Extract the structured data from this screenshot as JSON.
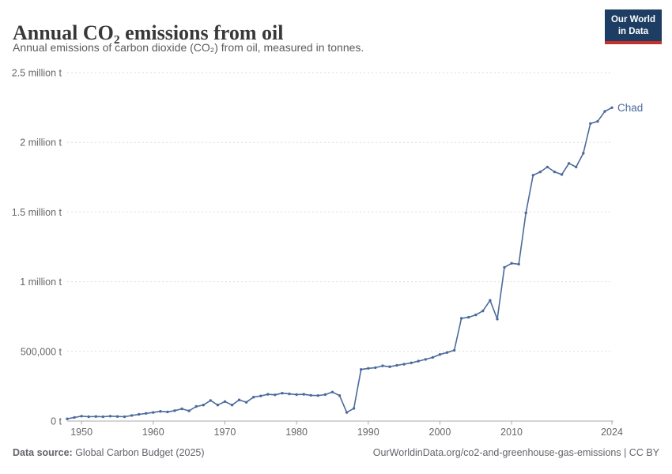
{
  "header": {
    "title": "Annual CO₂ emissions from oil",
    "subtitle": "Annual emissions of carbon dioxide (CO₂) from oil, measured in tonnes."
  },
  "logo": {
    "line1": "Our World",
    "line2": "in Data",
    "background_color": "#1D3D63",
    "accent_color": "#C5302B"
  },
  "footer": {
    "source_label": "Data source:",
    "source_value": " Global Carbon Budget (2025)",
    "link": "OurWorldinData.org/co2-and-greenhouse-gas-emissions | CC BY"
  },
  "chart_data": {
    "type": "line",
    "title": "Annual CO₂ emissions from oil",
    "ylabel": "",
    "xlabel": "",
    "grid": "dashed-horizontal",
    "legend_position": "end-of-line",
    "xlim": [
      1948,
      2024
    ],
    "ylim": [
      0,
      2500000
    ],
    "x": [
      1948,
      1949,
      1950,
      1951,
      1952,
      1953,
      1954,
      1955,
      1956,
      1957,
      1958,
      1959,
      1960,
      1961,
      1962,
      1963,
      1964,
      1965,
      1966,
      1967,
      1968,
      1969,
      1970,
      1971,
      1972,
      1973,
      1974,
      1975,
      1976,
      1977,
      1978,
      1979,
      1980,
      1981,
      1982,
      1983,
      1984,
      1985,
      1986,
      1987,
      1988,
      1989,
      1990,
      1991,
      1992,
      1993,
      1994,
      1995,
      1996,
      1997,
      1998,
      1999,
      2000,
      2001,
      2002,
      2003,
      2004,
      2005,
      2006,
      2007,
      2008,
      2009,
      2010,
      2011,
      2012,
      2013,
      2014,
      2015,
      2016,
      2017,
      2018,
      2019,
      2020,
      2021,
      2022,
      2023,
      2024
    ],
    "series": [
      {
        "name": "Chad",
        "color": "#4C6A9C",
        "values": [
          16000,
          26000,
          35000,
          31000,
          33000,
          31000,
          35000,
          33000,
          31000,
          40000,
          48000,
          55000,
          62000,
          70000,
          66000,
          75000,
          88000,
          73000,
          105000,
          115000,
          148000,
          115000,
          140000,
          115000,
          152000,
          135000,
          172000,
          180000,
          192000,
          188000,
          200000,
          195000,
          190000,
          192000,
          185000,
          183000,
          190000,
          208000,
          183000,
          62000,
          91000,
          370000,
          378000,
          383000,
          396000,
          390000,
          400000,
          408000,
          418000,
          430000,
          443000,
          457000,
          478000,
          492000,
          508000,
          737000,
          745000,
          762000,
          790000,
          866000,
          732000,
          1103000,
          1132000,
          1126000,
          1494000,
          1764000,
          1788000,
          1823000,
          1788000,
          1769000,
          1849000,
          1823000,
          1922000,
          2135000,
          2150000,
          2222000,
          2249000
        ]
      }
    ],
    "xticks": [
      {
        "v": 1950,
        "label": "1950"
      },
      {
        "v": 1960,
        "label": "1960"
      },
      {
        "v": 1970,
        "label": "1970"
      },
      {
        "v": 1980,
        "label": "1980"
      },
      {
        "v": 1990,
        "label": "1990"
      },
      {
        "v": 2000,
        "label": "2000"
      },
      {
        "v": 2010,
        "label": "2010"
      },
      {
        "v": 2024,
        "label": "2024"
      }
    ],
    "yticks": [
      {
        "v": 0,
        "label": "0 t"
      },
      {
        "v": 500000,
        "label": "500,000 t"
      },
      {
        "v": 1000000,
        "label": "1 million t"
      },
      {
        "v": 1500000,
        "label": "1.5 million t"
      },
      {
        "v": 2000000,
        "label": "2 million t"
      },
      {
        "v": 2500000,
        "label": "2.5 million t"
      }
    ],
    "colors": {
      "gridline": "#dedede",
      "axis": "#a8a8a8",
      "tick_label": "#666666"
    }
  }
}
